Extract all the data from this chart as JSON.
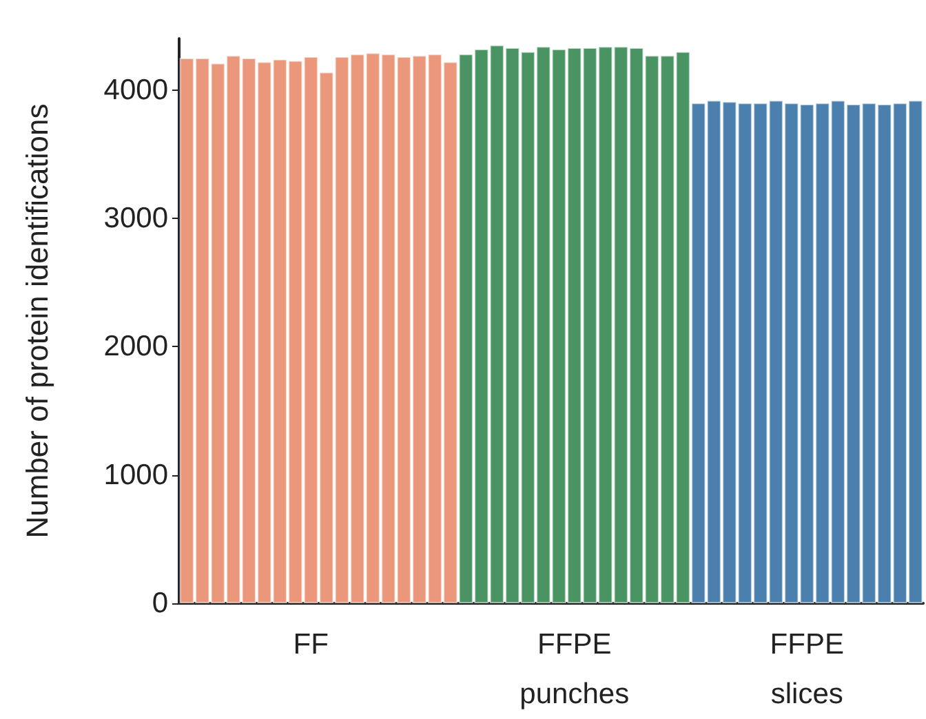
{
  "chart_data": {
    "type": "bar",
    "ylabel": "Number of protein identifications",
    "categories": [
      null,
      null,
      null,
      null,
      null,
      null,
      null,
      null,
      "FF",
      null,
      null,
      null,
      null,
      null,
      null,
      null,
      null,
      null,
      null,
      null,
      null,
      null,
      null,
      null,
      null,
      "FFPE\npunches",
      null,
      null,
      null,
      null,
      null,
      null,
      null,
      null,
      null,
      null,
      null,
      null,
      null,
      null,
      "FFPE\nslices",
      null,
      null,
      null,
      null,
      null,
      null,
      null
    ],
    "values": [
      4250,
      4250,
      4210,
      4270,
      4250,
      4220,
      4240,
      4230,
      4260,
      4140,
      4260,
      4280,
      4290,
      4280,
      4260,
      4270,
      4280,
      4220,
      4280,
      4320,
      4350,
      4330,
      4300,
      4340,
      4320,
      4330,
      4330,
      4340,
      4340,
      4330,
      4270,
      4270,
      4300,
      3900,
      3920,
      3910,
      3900,
      3900,
      3920,
      3900,
      3890,
      3900,
      3920,
      3890,
      3900,
      3890,
      3900,
      3920
    ],
    "colors": [
      "#eb977b",
      "#eb977b",
      "#eb977b",
      "#eb977b",
      "#eb977b",
      "#eb977b",
      "#eb977b",
      "#eb977b",
      "#eb977b",
      "#eb977b",
      "#eb977b",
      "#eb977b",
      "#eb977b",
      "#eb977b",
      "#eb977b",
      "#eb977b",
      "#eb977b",
      "#eb977b",
      "#4a9463",
      "#4a9463",
      "#4a9463",
      "#4a9463",
      "#4a9463",
      "#4a9463",
      "#4a9463",
      "#4a9463",
      "#4a9463",
      "#4a9463",
      "#4a9463",
      "#4a9463",
      "#4a9463",
      "#4a9463",
      "#4a9463",
      "#4b80ae",
      "#4b80ae",
      "#4b80ae",
      "#4b80ae",
      "#4b80ae",
      "#4b80ae",
      "#4b80ae",
      "#4b80ae",
      "#4b80ae",
      "#4b80ae",
      "#4b80ae",
      "#4b80ae",
      "#4b80ae",
      "#4b80ae",
      "#4b80ae"
    ],
    "ylim": [
      0,
      4400
    ],
    "yticks": [
      0,
      1000,
      2000,
      3000,
      4000
    ],
    "grid": false
  }
}
